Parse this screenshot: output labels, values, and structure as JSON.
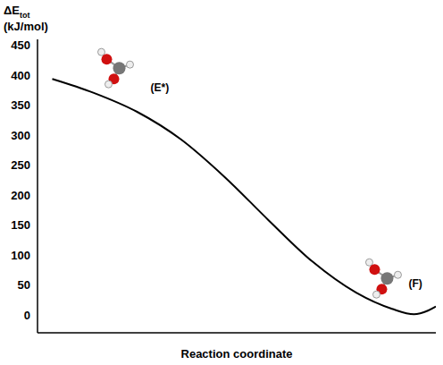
{
  "chart_data": {
    "type": "line",
    "x_label": "Reaction coordinate",
    "y_label": "ΔEtot (kJ/mol)",
    "annotations": [
      "(E*)",
      "(F)"
    ],
    "x": [
      3.7,
      14,
      25,
      36,
      47,
      58,
      69,
      80,
      89,
      94.5,
      98,
      100
    ],
    "values": [
      394,
      371,
      339,
      293,
      230,
      158,
      89,
      37,
      10,
      1,
      7,
      14
    ],
    "xlim": [
      0,
      100
    ],
    "ylim": [
      -30,
      460
    ],
    "yticks": [
      0,
      50,
      100,
      150,
      200,
      250,
      300,
      350,
      400,
      450
    ],
    "tick_labels": "y",
    "color": "#000000"
  }
}
